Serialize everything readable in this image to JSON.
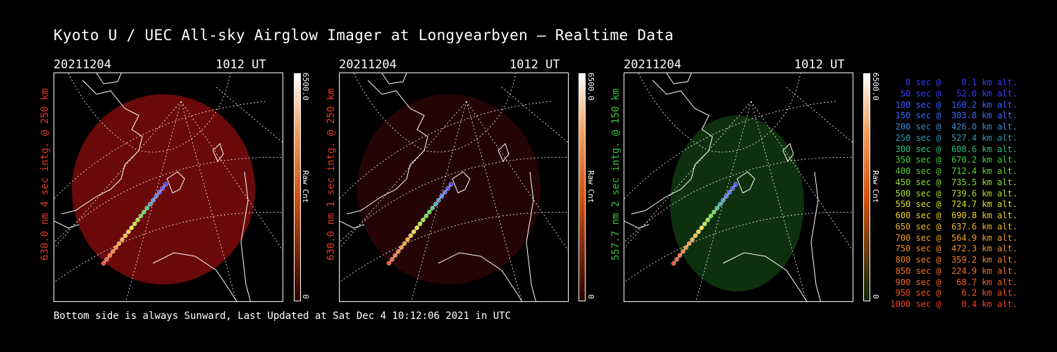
{
  "title": "Kyoto U / UEC All-sky Airglow Imager at Longyearbyen — Realtime Data",
  "footer": "Bottom side is always Sunward, Last Updated at Sat Dec  4 10:12:06 2021 in UTC",
  "panels": [
    {
      "date": "20211204",
      "time": "1012 UT",
      "ylabel": "630.0 nm 4 sec intg. @ 250 km",
      "ylabel_color": "#e23a22",
      "glow": "#c01010",
      "glow_opacity": 0.55,
      "bar_top": "#ffffff",
      "bar_bottom": "#2a0000",
      "cbar_max": "6500.0",
      "cbar_unit": "Raw Cnt",
      "cbar_min": "0"
    },
    {
      "date": "20211204",
      "time": "1012 UT",
      "ylabel": "630.0 nm 1 sec intg. @ 250 km",
      "ylabel_color": "#e23a22",
      "glow": "#801010",
      "glow_opacity": 0.28,
      "bar_top": "#ffffff",
      "bar_bottom": "#2a0000",
      "cbar_max": "6500.0",
      "cbar_unit": "Raw Cnt",
      "cbar_min": "0"
    },
    {
      "date": "20211204",
      "time": "1012 UT",
      "ylabel": "557.7 nm 2 sec intg. @ 150 km",
      "ylabel_color": "#3ec03e",
      "glow": "#1f6b1f",
      "glow_opacity": 0.45,
      "bar_top": "#ffffff",
      "bar_bottom": "#0a2a0a",
      "cbar_max": "6500.0",
      "cbar_unit": "Raw Cnt",
      "cbar_min": "0"
    }
  ],
  "legend": [
    {
      "text": "   0 sec @    0.1 km alt.",
      "color": "#3a3aff"
    },
    {
      "text": "  50 sec @   52.0 km alt.",
      "color": "#3a3aff"
    },
    {
      "text": " 100 sec @  160.2 km alt.",
      "color": "#3a5aff"
    },
    {
      "text": " 150 sec @  303.8 km alt.",
      "color": "#3a6aff"
    },
    {
      "text": " 200 sec @  426.0 km alt.",
      "color": "#3a8ad0"
    },
    {
      "text": " 250 sec @  527.4 km alt.",
      "color": "#2a9ab0"
    },
    {
      "text": " 300 sec @  608.6 km alt.",
      "color": "#2ac07a"
    },
    {
      "text": " 350 sec @  670.2 km alt.",
      "color": "#3ad03a"
    },
    {
      "text": " 400 sec @  712.4 km alt.",
      "color": "#5ad02a"
    },
    {
      "text": " 450 sec @  735.5 km alt.",
      "color": "#8ae02a"
    },
    {
      "text": " 500 sec @  739.6 km alt.",
      "color": "#b0e020"
    },
    {
      "text": " 550 sec @  724.7 km alt.",
      "color": "#e0e020"
    },
    {
      "text": " 600 sec @  690.8 km alt.",
      "color": "#f0d020"
    },
    {
      "text": " 650 sec @  637.6 km alt.",
      "color": "#f0b020"
    },
    {
      "text": " 700 sec @  564.9 km alt.",
      "color": "#f0a020"
    },
    {
      "text": " 750 sec @  472.3 km alt.",
      "color": "#f09020"
    },
    {
      "text": " 800 sec @  359.2 km alt.",
      "color": "#f08020"
    },
    {
      "text": " 850 sec @  224.9 km alt.",
      "color": "#f07020"
    },
    {
      "text": " 900 sec @   68.7 km alt.",
      "color": "#f06020"
    },
    {
      "text": " 950 sec @    6.2 km alt.",
      "color": "#f05020"
    },
    {
      "text": "1000 sec @    0.4 km alt.",
      "color": "#f04020"
    }
  ]
}
